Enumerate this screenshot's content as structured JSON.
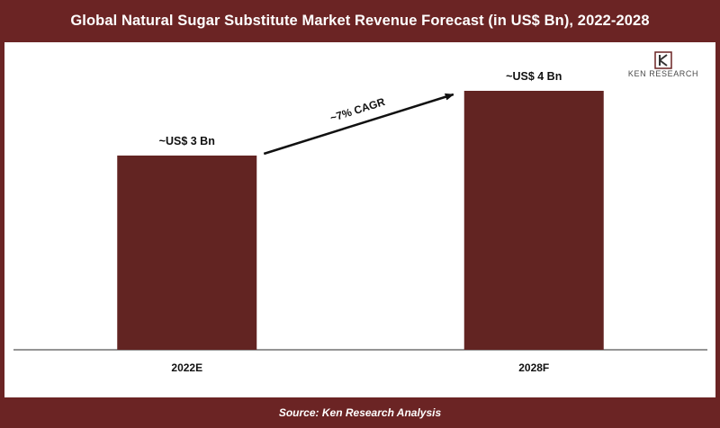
{
  "header": {
    "title": "Global Natural Sugar Substitute Market Revenue Forecast (in US$ Bn), 2022-2028"
  },
  "footer": {
    "source": "Source: Ken Research Analysis"
  },
  "logo": {
    "text": "KEN RESEARCH",
    "monogram": "K"
  },
  "colors": {
    "brand": "#6b2424",
    "bar": "#622422",
    "text": "#111111"
  },
  "chart_data": {
    "type": "bar",
    "title": "Global Natural Sugar Substitute Market Revenue Forecast (in US$ Bn), 2022-2028",
    "categories": [
      "2022E",
      "2028F"
    ],
    "values": [
      3,
      4
    ],
    "data_labels": [
      "~US$ 3 Bn",
      "~US$ 4 Bn"
    ],
    "annotation": "~7% CAGR",
    "xlabel": "",
    "ylabel": "",
    "ylim": [
      0,
      4.5
    ],
    "grid": false,
    "legend": "none"
  }
}
